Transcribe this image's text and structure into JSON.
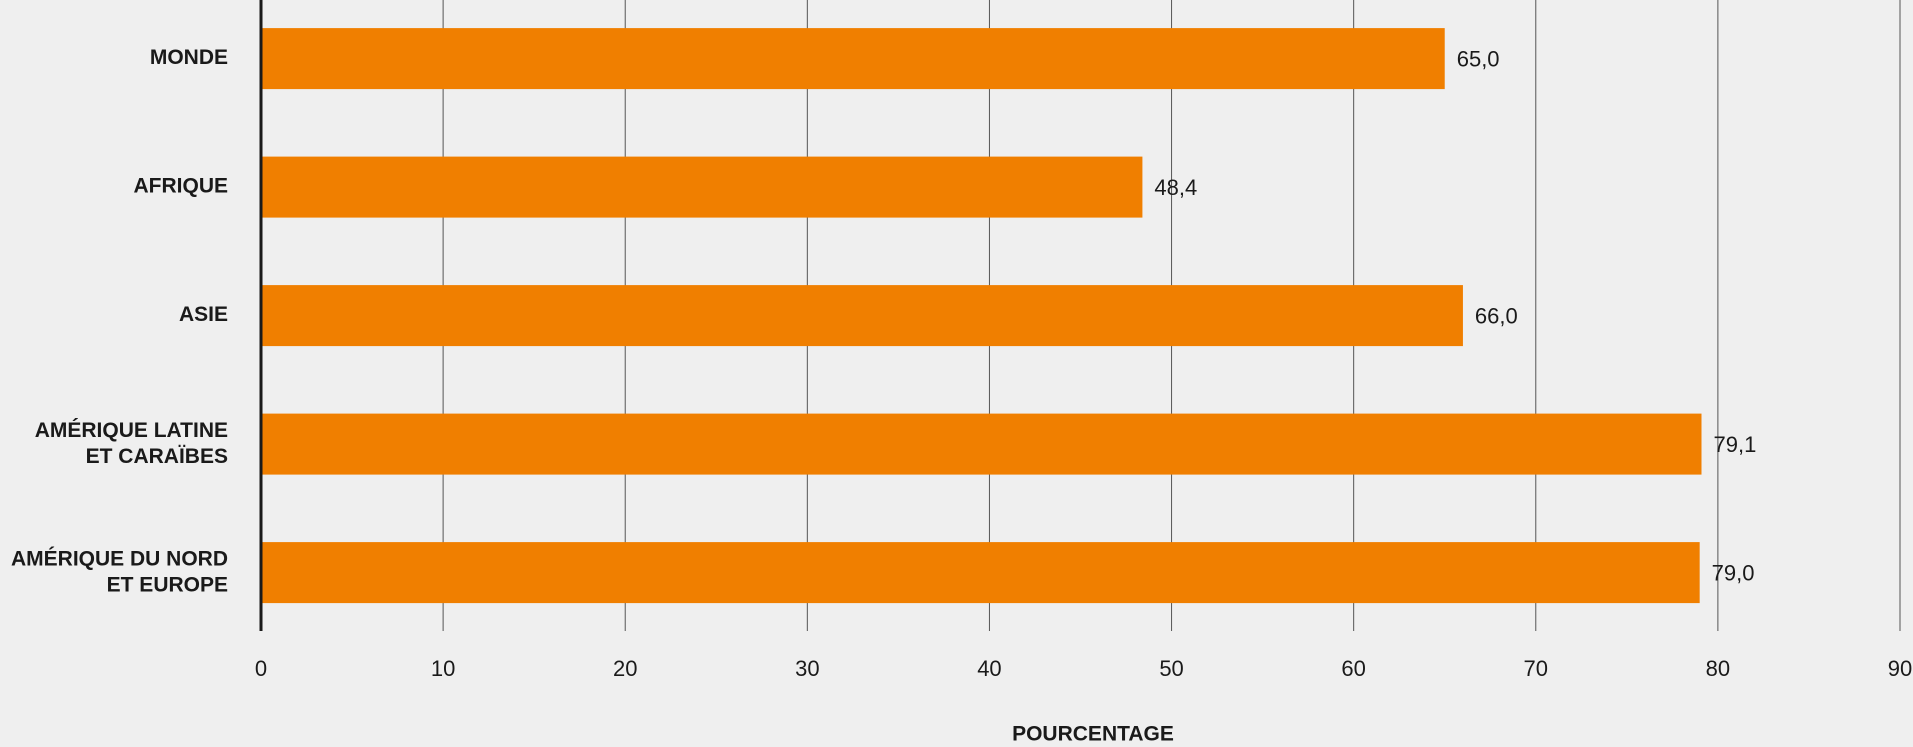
{
  "chart_data": {
    "type": "bar",
    "orientation": "horizontal",
    "x_label": "POURCENTAGE",
    "categories": [
      "MONDE",
      "AFRIQUE",
      "ASIE",
      "AMÉRIQUE LATINE\nET CARAÏBES",
      "AMÉRIQUE DU NORD\nET EUROPE"
    ],
    "values": [
      65.0,
      48.4,
      66.0,
      79.1,
      79.0
    ],
    "value_labels": [
      "65,0",
      "48,4",
      "66,0",
      "79,1",
      "79,0"
    ],
    "color": "#f07f00",
    "xlim": [
      0,
      90
    ],
    "xticks": [
      0,
      10,
      20,
      30,
      40,
      50,
      60,
      70,
      80,
      90
    ],
    "grid": true
  }
}
